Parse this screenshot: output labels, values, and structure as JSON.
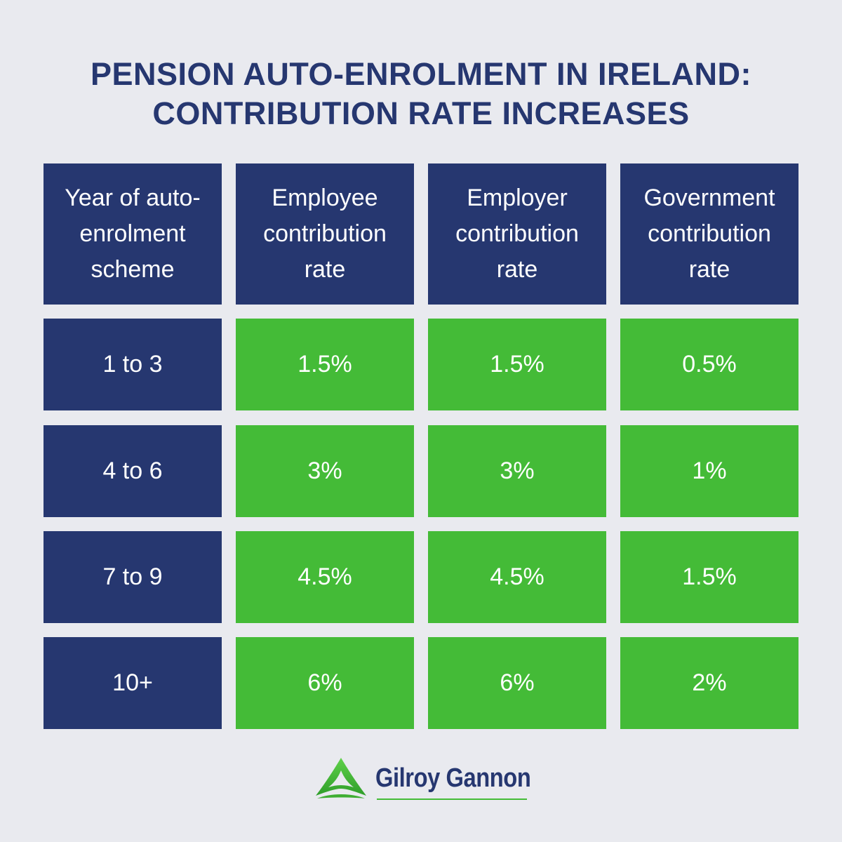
{
  "title": {
    "line1": "PENSION AUTO-ENROLMENT IN IRELAND:",
    "line2": "CONTRIBUTION RATE INCREASES"
  },
  "table": {
    "headers": [
      [
        "Year of auto-",
        "enrolment",
        "scheme"
      ],
      [
        "Employee",
        "contribution",
        "rate"
      ],
      [
        "Employer",
        "contribution",
        "rate"
      ],
      [
        "Government",
        "contribution",
        "rate"
      ]
    ],
    "rows": [
      [
        "1 to 3",
        "1.5%",
        "1.5%",
        "0.5%"
      ],
      [
        "4 to 6",
        "3%",
        "3%",
        "1%"
      ],
      [
        "7 to 9",
        "4.5%",
        "4.5%",
        "1.5%"
      ],
      [
        "10+",
        "6%",
        "6%",
        "2%"
      ]
    ]
  },
  "logo": {
    "text": "Gilroy Gannon",
    "icon": "triangle-swoosh-logo"
  },
  "colors": {
    "background": "#e9eaef",
    "navy": "#263770",
    "green": "#44bb37"
  }
}
